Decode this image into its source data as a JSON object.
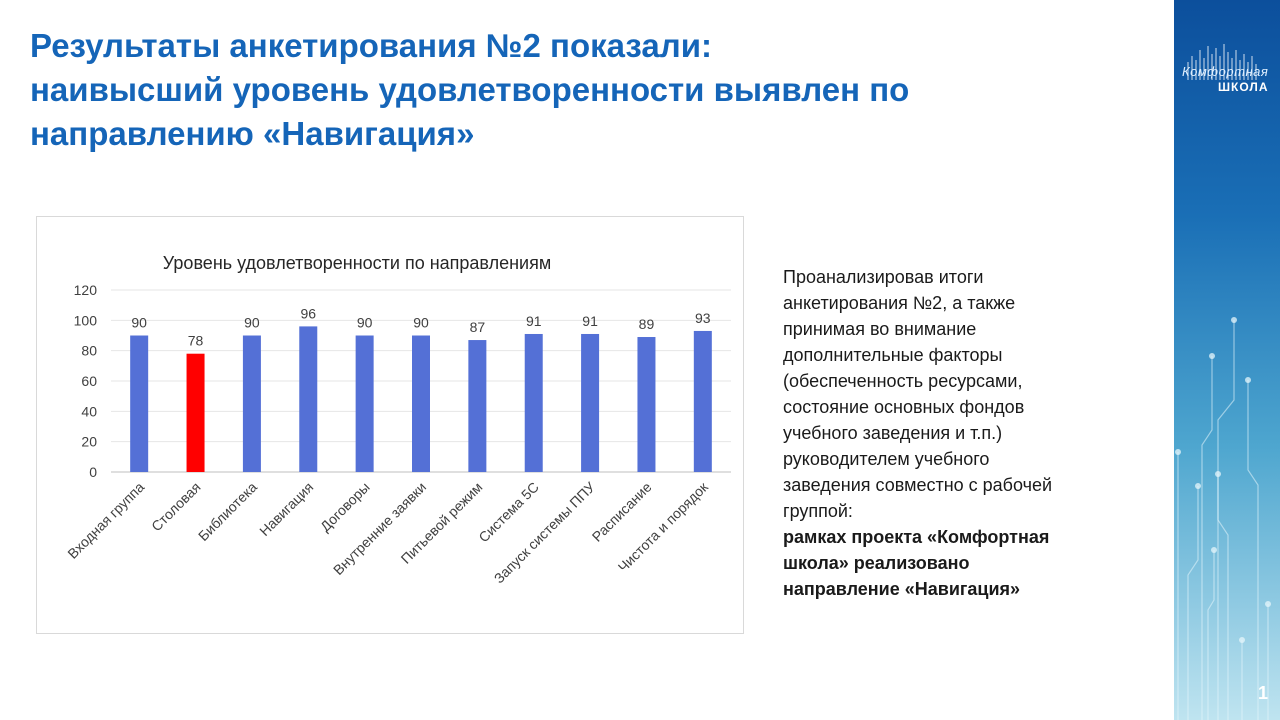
{
  "slide": {
    "title_lines": [
      "Результаты анкетирования №2 показали:",
      "наивысший уровень удовлетворенности выявлен по",
      "направлению «Навигация»"
    ],
    "side_text_lines": [
      "Проанализировав  итоги",
      "анкетирования  №2, а также",
      "принимая  во внимание",
      "дополнительные  факторы",
      "(обеспеченность ресурсами,",
      "состояние основных фондов",
      "учебного заведения и т.п.)",
      "руководителем  учебного",
      "заведения совместно с рабочей",
      "группой:"
    ],
    "side_text_bold_lines": [
      "рамках проекта «Комфортная",
      "школа» реализовано",
      "направление «Навигация»"
    ],
    "page_number": "1"
  },
  "logo": {
    "line1": "Комфортная",
    "line2": "ШКОЛА"
  },
  "colors": {
    "title": "#1565b8",
    "bar_default": "#5470d6",
    "bar_highlight": "#ff0000",
    "panel_top": "#0c4f9c",
    "panel_bottom": "#bfe4f0"
  },
  "chart_data": {
    "type": "bar",
    "title": "Уровень  удовлетворенности  по  направлениям",
    "categories": [
      "Входная группа",
      "Столовая",
      "Библиотека",
      "Навигация",
      "Договоры",
      "Внутренние заявки",
      "Питьевой режим",
      "Система 5С",
      "Запуск системы ППУ",
      "Расписание",
      "Чистота и порядок"
    ],
    "values": [
      90,
      78,
      90,
      96,
      90,
      90,
      87,
      91,
      91,
      89,
      93
    ],
    "highlight_index": 1,
    "ylim": [
      0,
      120
    ],
    "yticks": [
      0,
      20,
      40,
      60,
      80,
      100,
      120
    ],
    "grid": true,
    "xlabel": "",
    "ylabel": ""
  }
}
